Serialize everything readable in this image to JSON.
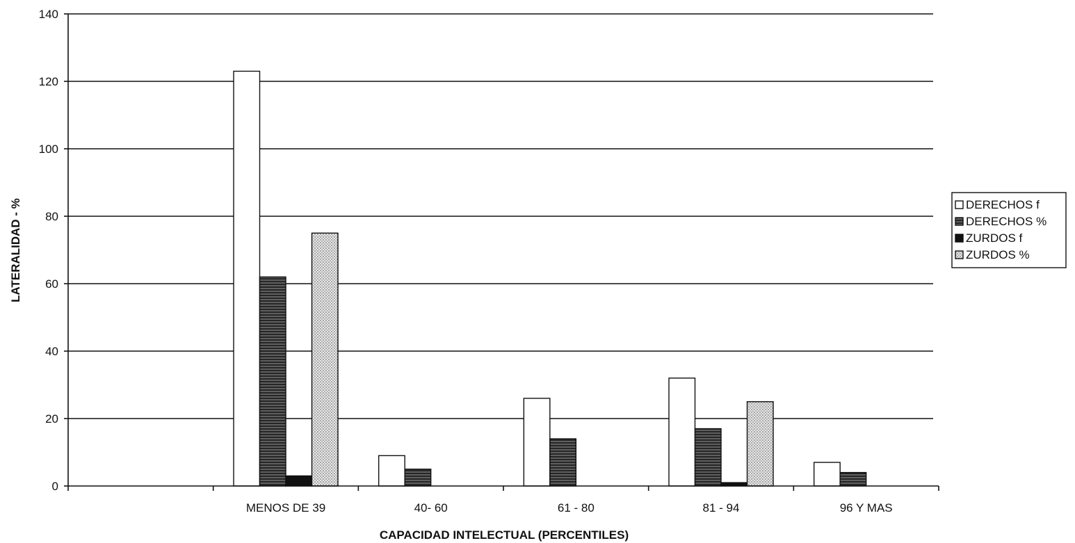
{
  "chart_data": {
    "type": "bar",
    "title": "",
    "xlabel": "CAPACIDAD INTELECTUAL (PERCENTILES)",
    "ylabel": "LATERALIDAD - %",
    "ylim": [
      0,
      140
    ],
    "yticks": [
      0,
      20,
      40,
      60,
      80,
      100,
      120,
      140
    ],
    "grid": true,
    "legend_position": "right",
    "categories": [
      "",
      "MENOS DE 39",
      "40- 60",
      "61 - 80",
      "81 - 94",
      "96 Y MAS"
    ],
    "series": [
      {
        "name": "DERECHOS  f",
        "pattern": "white",
        "values": [
          null,
          123,
          9,
          26,
          32,
          7
        ]
      },
      {
        "name": "DERECHOS  %",
        "pattern": "hlines",
        "values": [
          null,
          62,
          5,
          14,
          17,
          4
        ]
      },
      {
        "name": "ZURDOS f",
        "pattern": "black",
        "values": [
          null,
          3,
          0,
          0,
          1,
          0
        ]
      },
      {
        "name": "ZURDOS %",
        "pattern": "dots",
        "values": [
          null,
          75,
          0,
          0,
          25,
          0
        ]
      }
    ]
  }
}
